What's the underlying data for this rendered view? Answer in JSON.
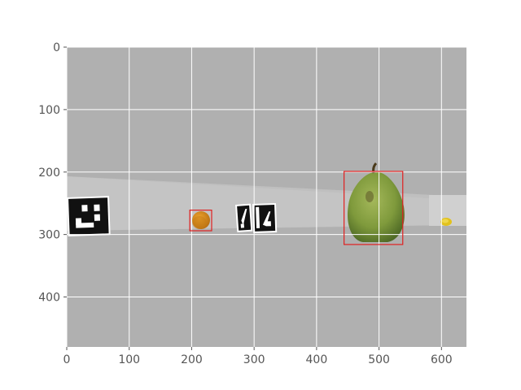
{
  "chart_data": {
    "type": "image-with-detections",
    "x_ticks": [
      "0",
      "100",
      "200",
      "300",
      "400",
      "500",
      "600"
    ],
    "y_ticks": [
      "0",
      "100",
      "200",
      "300",
      "400"
    ],
    "x_tick_values": [
      0,
      100,
      200,
      300,
      400,
      500,
      600
    ],
    "y_tick_values": [
      0,
      100,
      200,
      300,
      400
    ],
    "xlim": [
      0,
      640
    ],
    "ylim": [
      480,
      0
    ],
    "grid": true,
    "colors": {
      "background": "#b0b0b0",
      "grid": "#ffffff",
      "box": "#e02020",
      "pear": "#7f9a3c",
      "orange": "#d9901a",
      "lemon": "#e2c21c"
    },
    "objects": [
      {
        "name": "aruco-marker",
        "kind": "marker",
        "x": [
          0,
          68
        ],
        "y": [
          240,
          302
        ]
      },
      {
        "name": "orange",
        "kind": "fruit",
        "x": [
          197,
          232
        ],
        "y": [
          260,
          293
        ]
      },
      {
        "name": "aruco-marker",
        "kind": "marker",
        "x": [
          270,
          335
        ],
        "y": [
          250,
          296
        ]
      },
      {
        "name": "pear",
        "kind": "fruit",
        "x": [
          445,
          538
        ],
        "y": [
          185,
          310
        ]
      },
      {
        "name": "lemon",
        "kind": "fruit",
        "x": [
          596,
          614
        ],
        "y": [
          265,
          280
        ]
      }
    ],
    "bounding_boxes": [
      {
        "label": "",
        "x": [
          197,
          232
        ],
        "y": [
          261,
          294
        ]
      },
      {
        "label": "",
        "x": [
          444,
          538
        ],
        "y": [
          199,
          316
        ]
      }
    ]
  }
}
